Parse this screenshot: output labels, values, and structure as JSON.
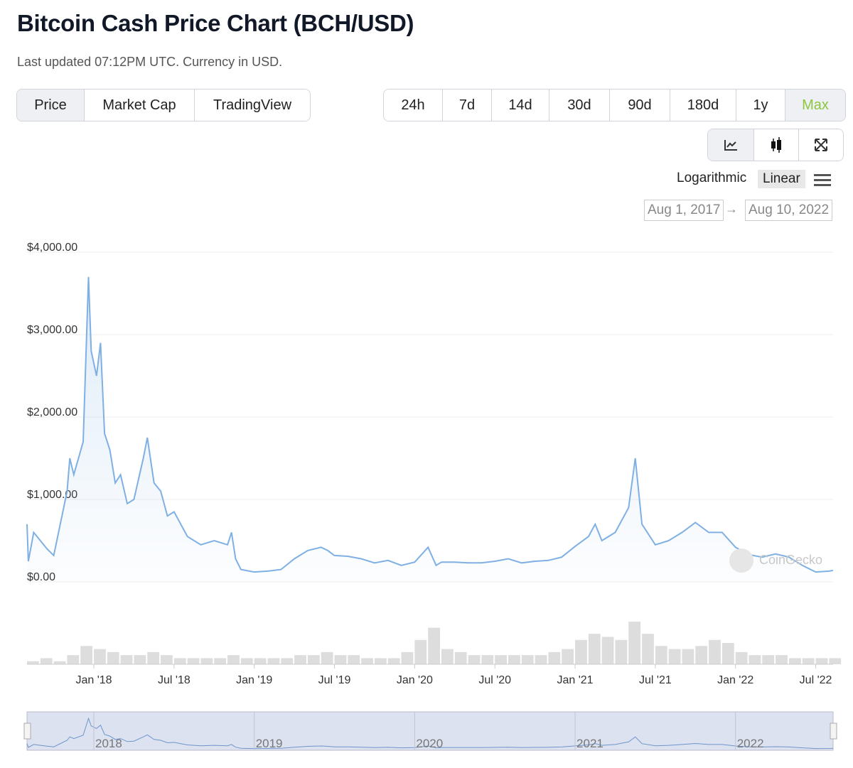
{
  "title": "Bitcoin Cash Price Chart (BCH/USD)",
  "subtitle": "Last updated 07:12PM UTC. Currency in USD.",
  "tabs": [
    "Price",
    "Market Cap",
    "TradingView"
  ],
  "ranges": [
    "24h",
    "7d",
    "14d",
    "30d",
    "90d",
    "180d",
    "1y",
    "Max"
  ],
  "scale": {
    "log": "Logarithmic",
    "linear": "Linear"
  },
  "date_from": "Aug 1, 2017",
  "date_to": "Aug 10, 2022",
  "arrow": "→",
  "watermark": "CoinGecko",
  "colors": {
    "line": "#7fb0e3",
    "accent": "#8dc63f"
  },
  "chart_data": {
    "type": "line",
    "title": "Bitcoin Cash Price Chart (BCH/USD)",
    "ylim": [
      0,
      4000
    ],
    "y_ticks": [
      "$0.00",
      "$1,000.00",
      "$2,000.00",
      "$3,000.00",
      "$4,000.00"
    ],
    "y_tick_values": [
      0,
      1000,
      2000,
      3000,
      4000
    ],
    "x_ticks": [
      "Jan '18",
      "Jul '18",
      "Jan '19",
      "Jul '19",
      "Jan '20",
      "Jul '20",
      "Jan '21",
      "Jul '21",
      "Jan '22",
      "Jul '22"
    ],
    "x_tick_months": [
      5,
      11,
      17,
      23,
      29,
      35,
      41,
      47,
      53,
      59
    ],
    "x_start": "Aug 2017",
    "x_unit": "months since Aug 2017",
    "navigator_labels": [
      "2018",
      "2019",
      "2020",
      "2021",
      "2022"
    ],
    "price": [
      [
        0,
        700
      ],
      [
        0.1,
        250
      ],
      [
        0.5,
        600
      ],
      [
        1,
        500
      ],
      [
        1.5,
        400
      ],
      [
        2,
        320
      ],
      [
        3,
        1100
      ],
      [
        3.2,
        1500
      ],
      [
        3.5,
        1300
      ],
      [
        4.2,
        1700
      ],
      [
        4.6,
        3700
      ],
      [
        4.8,
        2800
      ],
      [
        5.2,
        2500
      ],
      [
        5.5,
        2900
      ],
      [
        5.8,
        1800
      ],
      [
        6.2,
        1600
      ],
      [
        6.6,
        1200
      ],
      [
        7,
        1300
      ],
      [
        7.5,
        950
      ],
      [
        8,
        1000
      ],
      [
        8.7,
        1500
      ],
      [
        9,
        1750
      ],
      [
        9.5,
        1200
      ],
      [
        10,
        1100
      ],
      [
        10.5,
        800
      ],
      [
        11,
        850
      ],
      [
        11.5,
        700
      ],
      [
        12,
        550
      ],
      [
        13,
        450
      ],
      [
        14,
        500
      ],
      [
        15,
        450
      ],
      [
        15.3,
        600
      ],
      [
        15.6,
        280
      ],
      [
        16,
        150
      ],
      [
        17,
        120
      ],
      [
        18,
        130
      ],
      [
        19,
        150
      ],
      [
        20,
        280
      ],
      [
        21,
        380
      ],
      [
        22,
        420
      ],
      [
        22.5,
        380
      ],
      [
        23,
        320
      ],
      [
        24,
        310
      ],
      [
        25,
        280
      ],
      [
        26,
        230
      ],
      [
        27,
        260
      ],
      [
        28,
        200
      ],
      [
        29,
        240
      ],
      [
        30,
        420
      ],
      [
        30.6,
        200
      ],
      [
        31,
        240
      ],
      [
        32,
        240
      ],
      [
        33,
        230
      ],
      [
        34,
        230
      ],
      [
        35,
        250
      ],
      [
        36,
        280
      ],
      [
        37,
        230
      ],
      [
        38,
        250
      ],
      [
        39,
        260
      ],
      [
        40,
        300
      ],
      [
        41,
        430
      ],
      [
        42,
        550
      ],
      [
        42.5,
        700
      ],
      [
        43,
        500
      ],
      [
        44,
        600
      ],
      [
        45,
        900
      ],
      [
        45.5,
        1500
      ],
      [
        46,
        700
      ],
      [
        47,
        450
      ],
      [
        48,
        500
      ],
      [
        49,
        600
      ],
      [
        50,
        720
      ],
      [
        51,
        600
      ],
      [
        52,
        600
      ],
      [
        53,
        420
      ],
      [
        54,
        330
      ],
      [
        55,
        300
      ],
      [
        56,
        340
      ],
      [
        57,
        300
      ],
      [
        58,
        200
      ],
      [
        59,
        120
      ],
      [
        60,
        130
      ],
      [
        60.3,
        140
      ]
    ],
    "volume": [
      1,
      2,
      1,
      3,
      6,
      5,
      4,
      3,
      3,
      4,
      3,
      2,
      2,
      2,
      2,
      3,
      2,
      2,
      2,
      2,
      3,
      3,
      4,
      3,
      3,
      2,
      2,
      2,
      4,
      8,
      12,
      5,
      4,
      3,
      3,
      3,
      3,
      3,
      3,
      4,
      5,
      8,
      10,
      9,
      8,
      14,
      10,
      6,
      5,
      5,
      6,
      8,
      7,
      4,
      3,
      3,
      3,
      2,
      2,
      2,
      2
    ]
  }
}
